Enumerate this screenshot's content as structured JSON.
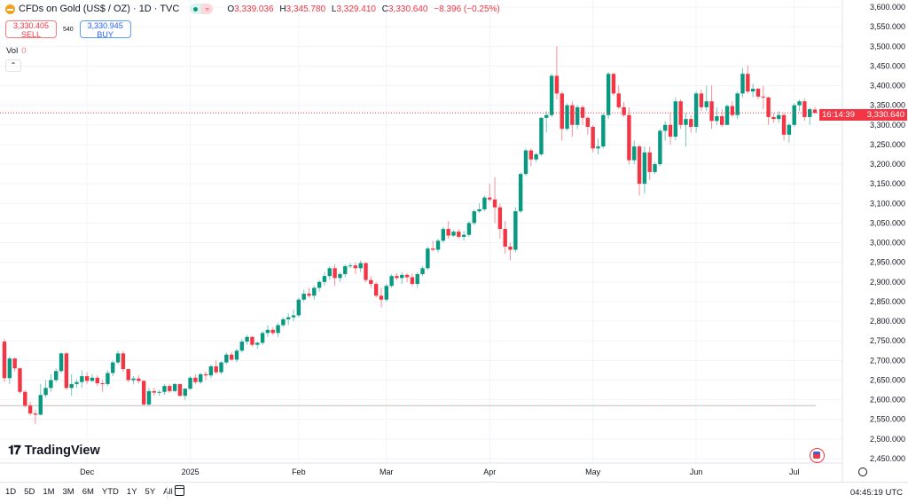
{
  "header": {
    "title": "CFDs on Gold (US$ / OZ) · 1D · TVC",
    "ohlc": {
      "o_label": "O",
      "o": "3,339.036",
      "h_label": "H",
      "h": "3,345.780",
      "l_label": "L",
      "l": "3,329.410",
      "c_label": "C",
      "c": "3,330.640",
      "change": "−8.396 (−0.25%)"
    },
    "sell_price": "3,330.405",
    "sell_label": "SELL",
    "spread": "540",
    "buy_price": "3,330.945",
    "buy_label": "BUY",
    "vol_label": "Vol",
    "vol_value": "0"
  },
  "logo_text": "TradingView",
  "price_tag": {
    "price": "3,330.640",
    "countdown": "16:14:39"
  },
  "bottombar": {
    "ranges": [
      "1D",
      "5D",
      "1M",
      "3M",
      "6M",
      "YTD",
      "1Y",
      "5Y",
      "All"
    ],
    "clock": "04:45:19 UTC"
  },
  "colors": {
    "up": "#089981",
    "down": "#f23645",
    "grid": "#f0f3fa"
  },
  "chart_data": {
    "type": "candlestick",
    "symbol": "CFDs on Gold (US$ / OZ)",
    "interval": "1D",
    "ylim": [
      2425,
      3610
    ],
    "y_ticks": [
      3600,
      3550,
      3500,
      3450,
      3400,
      3350,
      3300,
      3250,
      3200,
      3150,
      3100,
      3050,
      3000,
      2950,
      2900,
      2850,
      2800,
      2750,
      2700,
      2650,
      2600,
      2550,
      2500,
      2450
    ],
    "x_ticks": [
      {
        "label": "Dec",
        "index": 16
      },
      {
        "label": "2025",
        "index": 36
      },
      {
        "label": "Feb",
        "index": 57
      },
      {
        "label": "Mar",
        "index": 74
      },
      {
        "label": "Apr",
        "index": 94
      },
      {
        "label": "May",
        "index": 114
      },
      {
        "label": "Jun",
        "index": 134
      },
      {
        "label": "Jul",
        "index": 153
      }
    ],
    "last_price": 3330.64,
    "horizontal_line": 2585,
    "ohlc": [
      [
        2748,
        2755,
        2645,
        2655
      ],
      [
        2655,
        2710,
        2640,
        2705
      ],
      [
        2705,
        2708,
        2672,
        2680
      ],
      [
        2680,
        2682,
        2615,
        2620
      ],
      [
        2620,
        2625,
        2580,
        2585
      ],
      [
        2585,
        2595,
        2560,
        2565
      ],
      [
        2565,
        2575,
        2538,
        2562
      ],
      [
        2562,
        2640,
        2560,
        2612
      ],
      [
        2612,
        2650,
        2605,
        2630
      ],
      [
        2630,
        2665,
        2620,
        2650
      ],
      [
        2650,
        2680,
        2645,
        2673
      ],
      [
        2673,
        2722,
        2668,
        2718
      ],
      [
        2718,
        2722,
        2625,
        2630
      ],
      [
        2630,
        2665,
        2610,
        2640
      ],
      [
        2640,
        2652,
        2630,
        2645
      ],
      [
        2645,
        2675,
        2630,
        2660
      ],
      [
        2660,
        2670,
        2640,
        2648
      ],
      [
        2648,
        2665,
        2645,
        2656
      ],
      [
        2656,
        2662,
        2635,
        2642
      ],
      [
        2642,
        2650,
        2620,
        2640
      ],
      [
        2640,
        2675,
        2635,
        2668
      ],
      [
        2668,
        2700,
        2660,
        2695
      ],
      [
        2695,
        2725,
        2690,
        2718
      ],
      [
        2718,
        2724,
        2670,
        2678
      ],
      [
        2678,
        2680,
        2645,
        2650
      ],
      [
        2650,
        2660,
        2640,
        2654
      ],
      [
        2654,
        2662,
        2642,
        2648
      ],
      [
        2648,
        2650,
        2585,
        2588
      ],
      [
        2588,
        2630,
        2585,
        2622
      ],
      [
        2622,
        2630,
        2610,
        2618
      ],
      [
        2618,
        2625,
        2610,
        2620
      ],
      [
        2620,
        2640,
        2612,
        2635
      ],
      [
        2635,
        2640,
        2618,
        2622
      ],
      [
        2622,
        2642,
        2620,
        2640
      ],
      [
        2640,
        2640,
        2608,
        2610
      ],
      [
        2610,
        2630,
        2600,
        2628
      ],
      [
        2628,
        2660,
        2625,
        2656
      ],
      [
        2656,
        2665,
        2640,
        2645
      ],
      [
        2645,
        2668,
        2640,
        2665
      ],
      [
        2665,
        2672,
        2650,
        2662
      ],
      [
        2662,
        2690,
        2655,
        2685
      ],
      [
        2685,
        2700,
        2665,
        2670
      ],
      [
        2670,
        2698,
        2665,
        2695
      ],
      [
        2695,
        2720,
        2690,
        2715
      ],
      [
        2715,
        2722,
        2700,
        2702
      ],
      [
        2702,
        2730,
        2695,
        2725
      ],
      [
        2725,
        2755,
        2720,
        2748
      ],
      [
        2748,
        2765,
        2740,
        2760
      ],
      [
        2760,
        2762,
        2735,
        2740
      ],
      [
        2740,
        2748,
        2730,
        2745
      ],
      [
        2745,
        2775,
        2740,
        2770
      ],
      [
        2770,
        2790,
        2760,
        2778
      ],
      [
        2778,
        2785,
        2765,
        2770
      ],
      [
        2770,
        2795,
        2760,
        2790
      ],
      [
        2790,
        2810,
        2785,
        2805
      ],
      [
        2805,
        2820,
        2790,
        2810
      ],
      [
        2810,
        2830,
        2800,
        2815
      ],
      [
        2815,
        2860,
        2810,
        2855
      ],
      [
        2855,
        2880,
        2850,
        2870
      ],
      [
        2870,
        2885,
        2860,
        2865
      ],
      [
        2865,
        2890,
        2855,
        2885
      ],
      [
        2885,
        2905,
        2875,
        2900
      ],
      [
        2900,
        2925,
        2890,
        2915
      ],
      [
        2915,
        2940,
        2905,
        2935
      ],
      [
        2935,
        2945,
        2890,
        2910
      ],
      [
        2910,
        2925,
        2900,
        2920
      ],
      [
        2920,
        2945,
        2912,
        2940
      ],
      [
        2940,
        2948,
        2935,
        2942
      ],
      [
        2942,
        2950,
        2920,
        2935
      ],
      [
        2935,
        2955,
        2925,
        2948
      ],
      [
        2948,
        2950,
        2900,
        2905
      ],
      [
        2905,
        2915,
        2885,
        2895
      ],
      [
        2895,
        2900,
        2860,
        2865
      ],
      [
        2865,
        2885,
        2835,
        2855
      ],
      [
        2855,
        2895,
        2850,
        2890
      ],
      [
        2890,
        2920,
        2885,
        2915
      ],
      [
        2915,
        2922,
        2905,
        2910
      ],
      [
        2910,
        2925,
        2895,
        2918
      ],
      [
        2918,
        2922,
        2900,
        2912
      ],
      [
        2912,
        2922,
        2890,
        2895
      ],
      [
        2895,
        2925,
        2885,
        2920
      ],
      [
        2920,
        2940,
        2915,
        2935
      ],
      [
        2935,
        2990,
        2930,
        2985
      ],
      [
        2985,
        3005,
        2978,
        2982
      ],
      [
        2982,
        3010,
        2975,
        3005
      ],
      [
        3005,
        3040,
        3000,
        3035
      ],
      [
        3035,
        3055,
        3010,
        3018
      ],
      [
        3018,
        3032,
        3015,
        3028
      ],
      [
        3028,
        3035,
        3010,
        3015
      ],
      [
        3015,
        3030,
        3005,
        3020
      ],
      [
        3020,
        3055,
        3015,
        3050
      ],
      [
        3050,
        3085,
        3045,
        3080
      ],
      [
        3080,
        3100,
        3075,
        3085
      ],
      [
        3085,
        3120,
        3080,
        3115
      ],
      [
        3115,
        3150,
        3105,
        3110
      ],
      [
        3110,
        3167,
        3050,
        3090
      ],
      [
        3090,
        3100,
        3010,
        3035
      ],
      [
        3035,
        3055,
        2972,
        2990
      ],
      [
        2990,
        3000,
        2955,
        2982
      ],
      [
        2982,
        3090,
        2975,
        3080
      ],
      [
        3080,
        3180,
        3075,
        3175
      ],
      [
        3175,
        3240,
        3170,
        3235
      ],
      [
        3235,
        3240,
        3195,
        3212
      ],
      [
        3212,
        3230,
        3205,
        3225
      ],
      [
        3225,
        3320,
        3220,
        3318
      ],
      [
        3318,
        3335,
        3280,
        3325
      ],
      [
        3325,
        3430,
        3320,
        3425
      ],
      [
        3425,
        3500,
        3365,
        3380
      ],
      [
        3380,
        3385,
        3260,
        3290
      ],
      [
        3290,
        3355,
        3285,
        3350
      ],
      [
        3350,
        3360,
        3270,
        3300
      ],
      [
        3300,
        3350,
        3290,
        3345
      ],
      [
        3345,
        3350,
        3300,
        3318
      ],
      [
        3318,
        3322,
        3275,
        3295
      ],
      [
        3295,
        3300,
        3230,
        3240
      ],
      [
        3240,
        3265,
        3225,
        3245
      ],
      [
        3245,
        3330,
        3240,
        3325
      ],
      [
        3325,
        3435,
        3315,
        3430
      ],
      [
        3430,
        3432,
        3375,
        3380
      ],
      [
        3380,
        3400,
        3340,
        3345
      ],
      [
        3345,
        3358,
        3320,
        3325
      ],
      [
        3325,
        3345,
        3200,
        3210
      ],
      [
        3210,
        3260,
        3200,
        3245
      ],
      [
        3245,
        3250,
        3120,
        3150
      ],
      [
        3150,
        3245,
        3125,
        3230
      ],
      [
        3230,
        3245,
        3160,
        3180
      ],
      [
        3180,
        3205,
        3175,
        3200
      ],
      [
        3200,
        3290,
        3195,
        3285
      ],
      [
        3285,
        3310,
        3260,
        3300
      ],
      [
        3300,
        3330,
        3250,
        3270
      ],
      [
        3270,
        3370,
        3260,
        3360
      ],
      [
        3360,
        3365,
        3290,
        3300
      ],
      [
        3300,
        3330,
        3245,
        3315
      ],
      [
        3315,
        3325,
        3280,
        3295
      ],
      [
        3295,
        3385,
        3280,
        3380
      ],
      [
        3380,
        3390,
        3335,
        3345
      ],
      [
        3345,
        3400,
        3335,
        3360
      ],
      [
        3360,
        3400,
        3290,
        3310
      ],
      [
        3310,
        3345,
        3300,
        3322
      ],
      [
        3322,
        3340,
        3295,
        3300
      ],
      [
        3300,
        3352,
        3300,
        3348
      ],
      [
        3348,
        3360,
        3320,
        3325
      ],
      [
        3325,
        3385,
        3315,
        3380
      ],
      [
        3380,
        3445,
        3370,
        3430
      ],
      [
        3430,
        3452,
        3380,
        3385
      ],
      [
        3385,
        3405,
        3370,
        3392
      ],
      [
        3392,
        3395,
        3365,
        3372
      ],
      [
        3372,
        3400,
        3340,
        3370
      ],
      [
        3370,
        3372,
        3300,
        3320
      ],
      [
        3320,
        3330,
        3305,
        3315
      ],
      [
        3315,
        3335,
        3305,
        3325
      ],
      [
        3325,
        3330,
        3260,
        3275
      ],
      [
        3275,
        3305,
        3255,
        3300
      ],
      [
        3300,
        3355,
        3295,
        3350
      ],
      [
        3350,
        3365,
        3335,
        3360
      ],
      [
        3360,
        3368,
        3310,
        3320
      ],
      [
        3320,
        3345,
        3300,
        3340
      ],
      [
        3339.036,
        3345.78,
        3329.41,
        3330.64
      ]
    ]
  }
}
